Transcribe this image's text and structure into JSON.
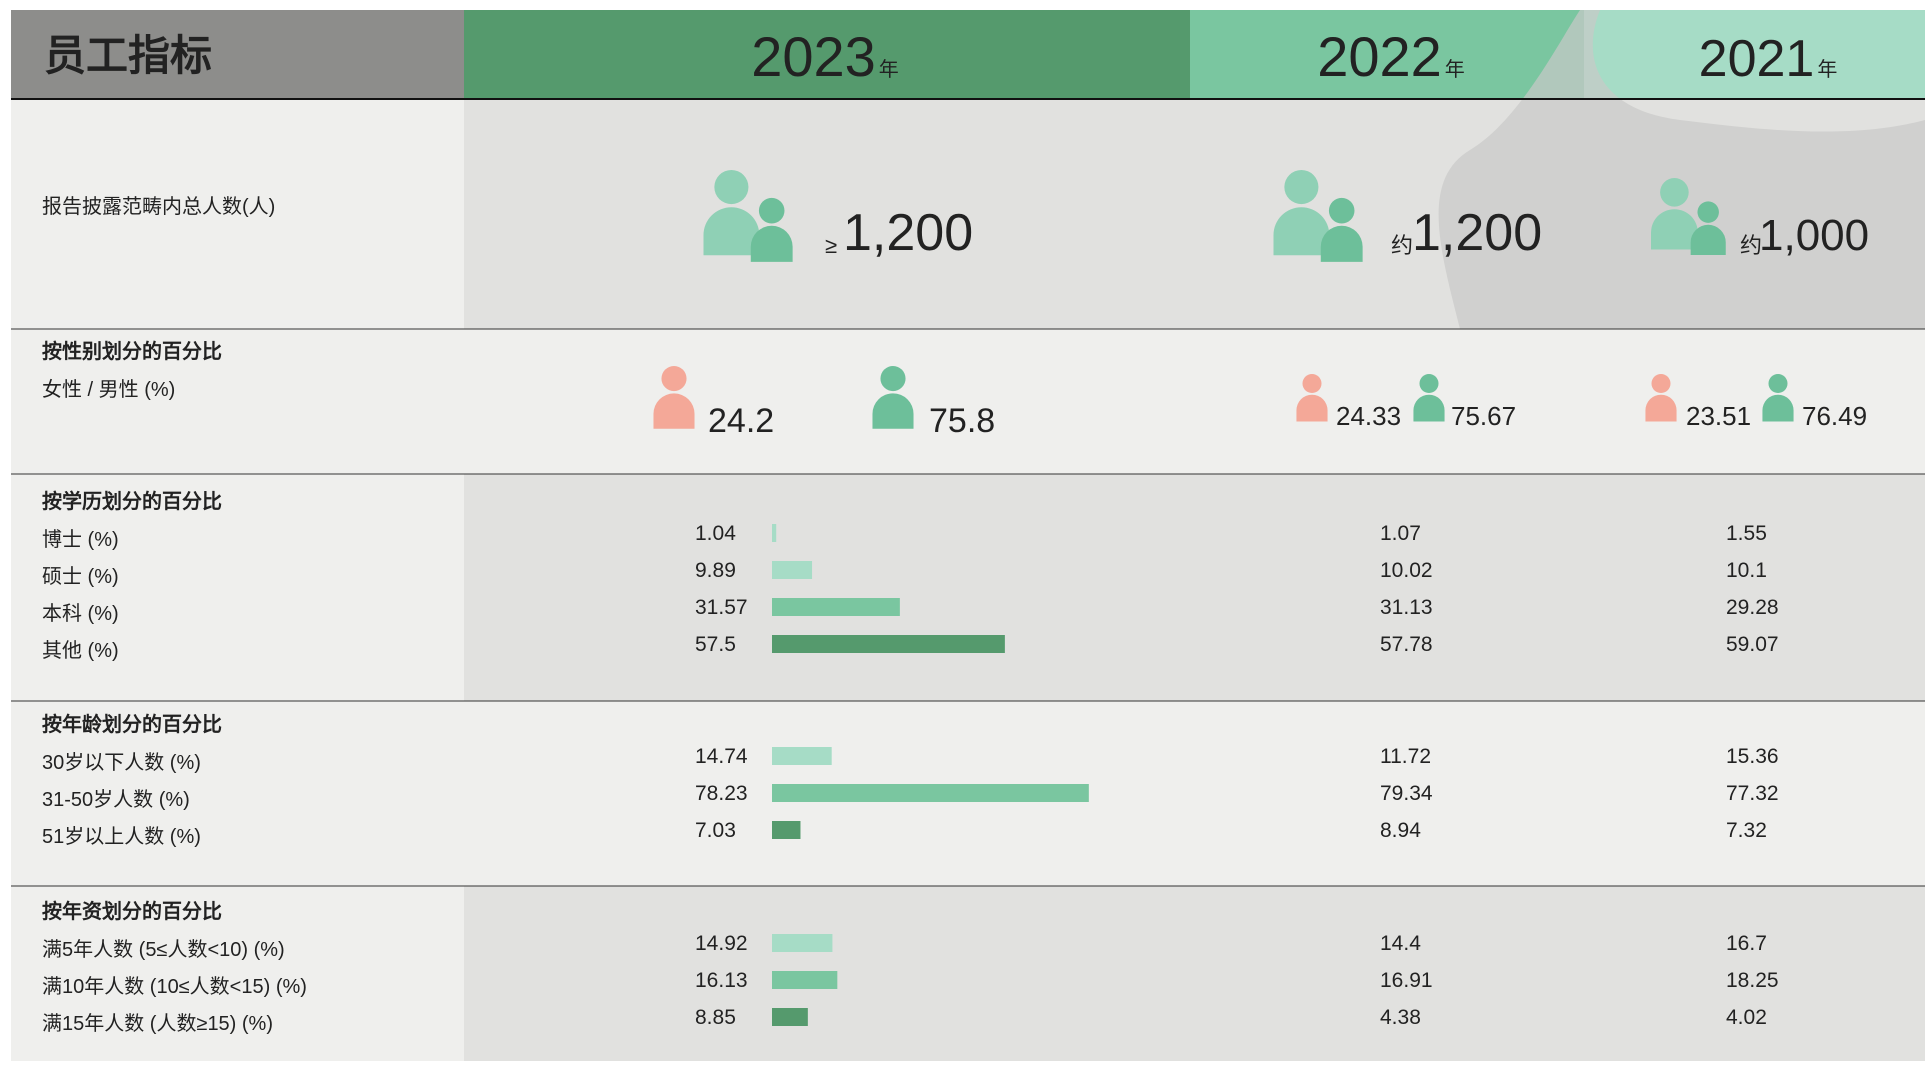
{
  "header": {
    "title": "员工指标",
    "columns": [
      {
        "year": "2023",
        "unit": "年"
      },
      {
        "year": "2022",
        "unit": "年"
      },
      {
        "year": "2021",
        "unit": "年"
      }
    ]
  },
  "total": {
    "label": "报告披露范畴内总人数(人)",
    "values": [
      {
        "prefix": "≥",
        "value": "1,200"
      },
      {
        "prefix": "约",
        "value": "1,200"
      },
      {
        "prefix": "约",
        "value": "1,000"
      }
    ]
  },
  "gender": {
    "title": "按性别划分的百分比",
    "label": "女性 / 男性 (%)",
    "female": [
      24.2,
      24.33,
      23.51
    ],
    "male": [
      75.8,
      75.67,
      76.49
    ],
    "female_color": "#f4a898",
    "male_color": "#6dbf9a"
  },
  "groups": [
    {
      "title": "按学历划分的百分比",
      "rows": [
        {
          "label": "博士 (%)",
          "values": [
            1.04,
            1.07,
            1.55
          ],
          "color": "#a6dcc6"
        },
        {
          "label": "硕士 (%)",
          "values": [
            9.89,
            10.02,
            10.1
          ],
          "color": "#a6dcc6"
        },
        {
          "label": "本科 (%)",
          "values": [
            31.57,
            31.13,
            29.28
          ],
          "color": "#7ac6a0"
        },
        {
          "label": "其他 (%)",
          "values": [
            57.5,
            57.78,
            59.07
          ],
          "color": "#559a6d"
        }
      ]
    },
    {
      "title": "按年龄划分的百分比",
      "rows": [
        {
          "label": "30岁以下人数 (%)",
          "values": [
            14.74,
            11.72,
            15.36
          ],
          "color": "#a6dcc6"
        },
        {
          "label": "31-50岁人数 (%)",
          "values": [
            78.23,
            79.34,
            77.32
          ],
          "color": "#7ac6a0"
        },
        {
          "label": "51岁以上人数 (%)",
          "values": [
            7.03,
            8.94,
            7.32
          ],
          "color": "#559a6d"
        }
      ]
    },
    {
      "title": "按年资划分的百分比",
      "rows": [
        {
          "label": "满5年人数 (5≤人数<10) (%)",
          "values": [
            14.92,
            14.4,
            16.7
          ],
          "color": "#a6dcc6"
        },
        {
          "label": "满10年人数 (10≤人数<15) (%)",
          "values": [
            16.13,
            16.91,
            18.25
          ],
          "color": "#7ac6a0"
        },
        {
          "label": "满15年人数 (人数≥15) (%)",
          "values": [
            8.85,
            4.38,
            4.02
          ],
          "color": "#559a6d"
        }
      ]
    }
  ]
}
